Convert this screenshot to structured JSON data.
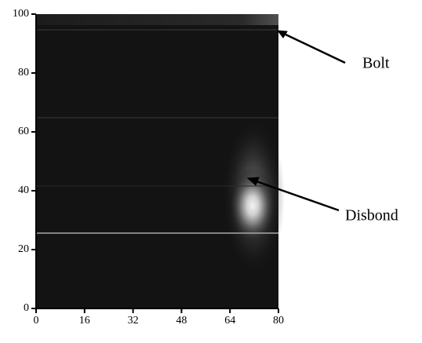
{
  "chart_data": {
    "type": "image",
    "xlim": [
      0,
      80
    ],
    "ylim": [
      0,
      100
    ],
    "xticks": [
      0,
      16,
      32,
      48,
      64,
      80
    ],
    "yticks": [
      0,
      20,
      40,
      60,
      80,
      100
    ],
    "annotations": [
      "Bolt",
      "Disbond"
    ]
  }
}
